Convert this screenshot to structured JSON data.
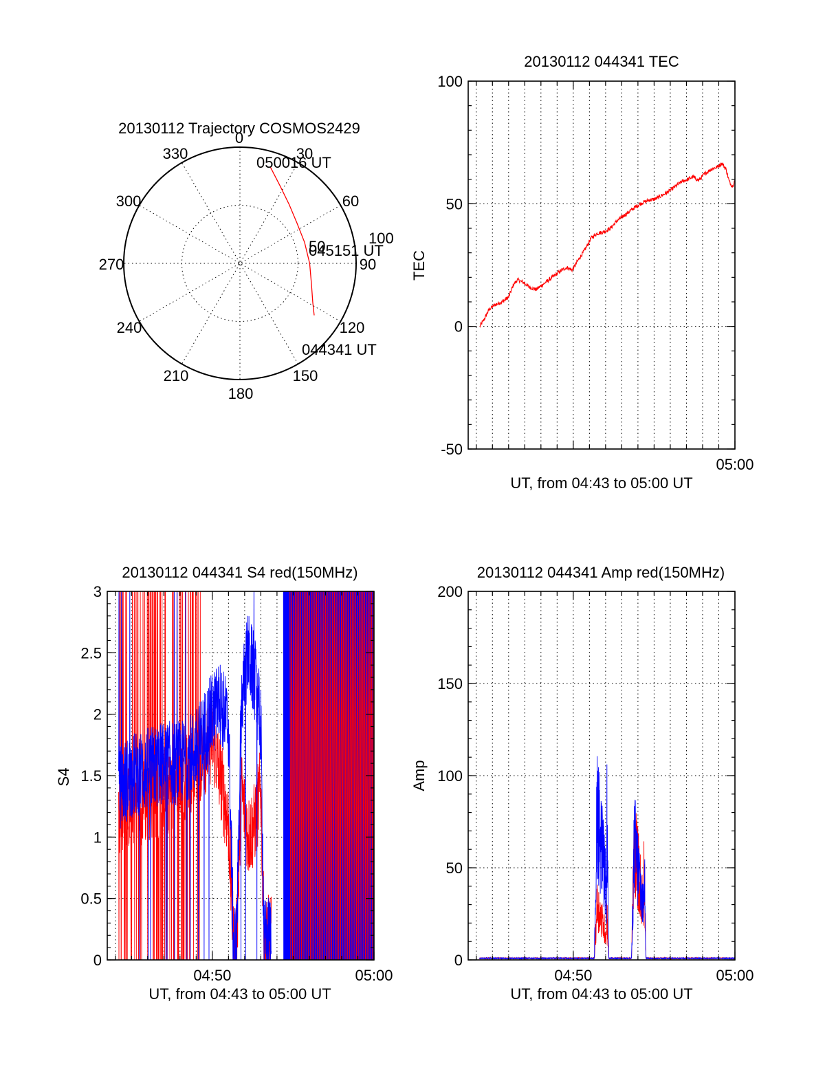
{
  "colors": {
    "red": "#ff0000",
    "blue": "#0000ff",
    "axis": "#000000",
    "background": "#ffffff"
  },
  "chart_data": [
    {
      "id": "trajectory",
      "type": "polar",
      "title": "20130112 Trajectory COSMOS2429",
      "angle_labels": [
        "0",
        "30",
        "60",
        "90",
        "120",
        "150",
        "180",
        "210",
        "240",
        "270",
        "300",
        "330"
      ],
      "radial_labels": [
        "50",
        "100"
      ],
      "radial_max": 100,
      "direction": "clockwise from north",
      "grid": true,
      "series": [
        {
          "color": "red",
          "points": [
            {
              "az": 17.5,
              "r": 87
            },
            {
              "az": 27.5,
              "r": 75
            },
            {
              "az": 40,
              "r": 66
            },
            {
              "az": 55,
              "r": 60
            },
            {
              "az": 72,
              "r": 58.5
            },
            {
              "az": 90,
              "r": 60
            },
            {
              "az": 106,
              "r": 64
            },
            {
              "az": 118,
              "r": 71
            },
            {
              "az": 125,
              "r": 78
            }
          ]
        }
      ],
      "annotations": [
        "050016 UT",
        "045151 UT",
        "044341 UT"
      ]
    },
    {
      "id": "tec",
      "type": "line",
      "title": "20130112 044341 TEC",
      "xlabel": "UT, from 04:43 to 05:00 UT",
      "ylabel": "TEC",
      "xlim": [
        43.5,
        60.0
      ],
      "ylim": [
        -50,
        100
      ],
      "yticks": [
        "-50",
        "0",
        "50",
        "100"
      ],
      "xtick_labels": [
        {
          "x": 60,
          "label": "05:00"
        }
      ],
      "grid": true,
      "series": [
        {
          "color": "red",
          "x": [
            44.22,
            44.5,
            44.8,
            45.2,
            45.6,
            46.0,
            46.3,
            46.55,
            46.9,
            47.3,
            47.7,
            48.1,
            48.5,
            48.9,
            49.3,
            49.6,
            49.95,
            50.3,
            50.7,
            51.1,
            51.5,
            51.9,
            52.3,
            52.7,
            53.1,
            53.5,
            53.9,
            54.3,
            54.7,
            55.1,
            55.5,
            55.9,
            56.3,
            56.7,
            57.1,
            57.4,
            57.75,
            58.1,
            58.5,
            58.9,
            59.2,
            59.45,
            59.65,
            59.85,
            60.0
          ],
          "y": [
            0,
            3,
            7,
            9,
            10,
            12,
            17,
            19,
            18,
            16,
            15,
            17,
            19,
            21,
            23,
            24,
            23,
            27,
            31,
            36,
            38,
            38.5,
            40,
            43,
            45,
            47,
            49,
            50.5,
            51.5,
            52,
            53.5,
            55,
            57,
            59,
            60,
            61,
            59.5,
            62,
            64,
            65,
            66.5,
            64,
            59,
            57,
            60
          ]
        }
      ]
    },
    {
      "id": "s4",
      "type": "line",
      "title": "20130112 044341 S4 red(150MHz)",
      "xlabel": "UT, from 04:43 to 05:00 UT",
      "ylabel": "S4",
      "xlim": [
        43.5,
        60.0
      ],
      "ylim": [
        0,
        3
      ],
      "yticks": [
        "0",
        "0.5",
        "1",
        "1.5",
        "2",
        "2.5",
        "3"
      ],
      "xtick_labels": [
        {
          "x": 50,
          "label": "04:50"
        },
        {
          "x": 60,
          "label": "05:00"
        }
      ],
      "grid": true,
      "series": [
        {
          "color": "red",
          "description_points": [
            {
              "x": 44.2,
              "y": 1.2
            },
            {
              "x": 45.0,
              "y": 1.25
            },
            {
              "x": 46.0,
              "y": 1.3
            },
            {
              "x": 47.0,
              "y": 1.35
            },
            {
              "x": 48.0,
              "y": 1.45
            },
            {
              "x": 49.0,
              "y": 1.55
            },
            {
              "x": 50.0,
              "y": 1.8
            },
            {
              "x": 50.5,
              "y": 1.5
            },
            {
              "x": 51.0,
              "y": 1.1
            },
            {
              "x": 51.3,
              "y": 0.15
            },
            {
              "x": 51.5,
              "y": 0.15
            },
            {
              "x": 51.8,
              "y": 1.4
            },
            {
              "x": 52.2,
              "y": 1.0
            },
            {
              "x": 52.6,
              "y": 1.1
            },
            {
              "x": 53.0,
              "y": 1.4
            },
            {
              "x": 53.2,
              "y": 0.15
            },
            {
              "x": 53.6,
              "y": 0.2
            }
          ]
        },
        {
          "color": "blue",
          "description_points": [
            {
              "x": 44.2,
              "y": 1.4
            },
            {
              "x": 45.0,
              "y": 1.5
            },
            {
              "x": 46.0,
              "y": 1.55
            },
            {
              "x": 47.0,
              "y": 1.6
            },
            {
              "x": 48.0,
              "y": 1.6
            },
            {
              "x": 49.0,
              "y": 1.7
            },
            {
              "x": 50.0,
              "y": 2.0
            },
            {
              "x": 50.5,
              "y": 2.1
            },
            {
              "x": 51.0,
              "y": 1.9
            },
            {
              "x": 51.3,
              "y": 0.15
            },
            {
              "x": 51.5,
              "y": 0.15
            },
            {
              "x": 51.8,
              "y": 2.1
            },
            {
              "x": 52.2,
              "y": 2.5
            },
            {
              "x": 52.6,
              "y": 2.3
            },
            {
              "x": 53.0,
              "y": 1.9
            },
            {
              "x": 53.2,
              "y": 0.15
            },
            {
              "x": 53.6,
              "y": 0.2
            }
          ]
        }
      ]
    },
    {
      "id": "amp",
      "type": "line",
      "title": "20130112 044341 Amp red(150MHz)",
      "xlabel": "UT, from 04:43 to 05:00 UT",
      "ylabel": "Amp",
      "xlim": [
        43.5,
        60.0
      ],
      "ylim": [
        0,
        200
      ],
      "yticks": [
        "0",
        "50",
        "100",
        "150",
        "200"
      ],
      "xtick_labels": [
        {
          "x": 50,
          "label": "04:50"
        },
        {
          "x": 60,
          "label": "05:00"
        }
      ],
      "grid": true,
      "series": [
        {
          "color": "red",
          "bursts": [
            {
              "x0": 51.3,
              "x1": 52.2,
              "peak": 45
            },
            {
              "x0": 53.6,
              "x1": 54.5,
              "peak": 95
            }
          ]
        },
        {
          "color": "blue",
          "bursts": [
            {
              "x0": 51.3,
              "x1": 52.2,
              "peak": 124
            },
            {
              "x0": 53.6,
              "x1": 54.5,
              "peak": 94
            }
          ]
        }
      ]
    }
  ]
}
